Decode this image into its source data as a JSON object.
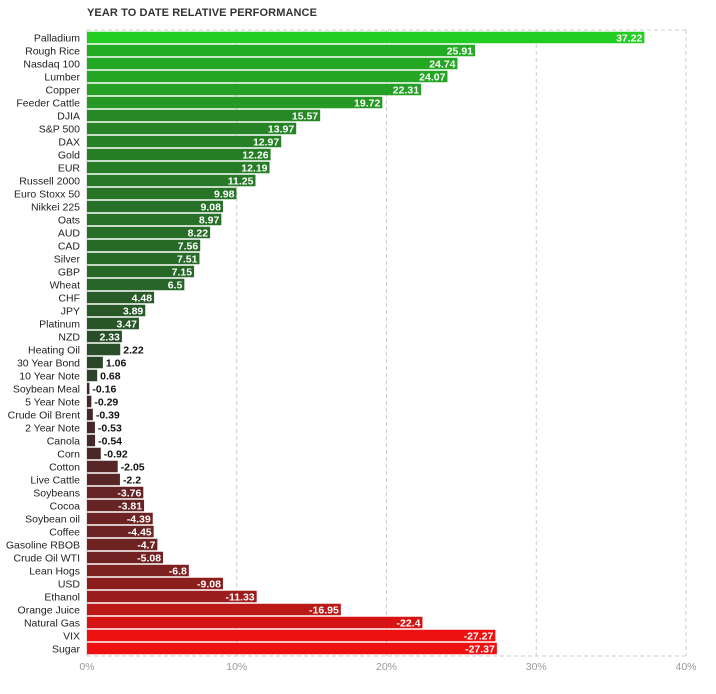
{
  "chart_data": {
    "type": "bar",
    "orientation": "horizontal",
    "title": "YEAR TO DATE RELATIVE PERFORMANCE",
    "xlabel": "",
    "ylabel": "",
    "xlim": [
      0,
      40
    ],
    "x_ticks": [
      "0%",
      "10%",
      "20%",
      "30%",
      "40%"
    ],
    "x_tick_values": [
      0,
      10,
      20,
      30,
      40
    ],
    "grid": true,
    "categories": [
      "Palladium",
      "Rough Rice",
      "Nasdaq 100",
      "Lumber",
      "Copper",
      "Feeder Cattle",
      "DJIA",
      "S&P 500",
      "DAX",
      "Gold",
      "EUR",
      "Russell 2000",
      "Euro Stoxx 50",
      "Nikkei 225",
      "Oats",
      "AUD",
      "CAD",
      "Silver",
      "GBP",
      "Wheat",
      "CHF",
      "JPY",
      "Platinum",
      "NZD",
      "Heating Oil",
      "30 Year Bond",
      "10 Year Note",
      "Soybean Meal",
      "5 Year Note",
      "Crude Oil Brent",
      "2 Year Note",
      "Canola",
      "Corn",
      "Cotton",
      "Live Cattle",
      "Soybeans",
      "Cocoa",
      "Soybean oil",
      "Coffee",
      "Gasoline RBOB",
      "Crude Oil WTI",
      "Lean Hogs",
      "USD",
      "Ethanol",
      "Orange Juice",
      "Natural Gas",
      "VIX",
      "Sugar"
    ],
    "values": [
      37.22,
      25.91,
      24.74,
      24.07,
      22.31,
      19.72,
      15.57,
      13.97,
      12.97,
      12.26,
      12.19,
      11.25,
      9.98,
      9.08,
      8.97,
      8.22,
      7.56,
      7.51,
      7.15,
      6.5,
      4.48,
      3.89,
      3.47,
      2.33,
      2.22,
      1.06,
      0.68,
      -0.16,
      -0.29,
      -0.39,
      -0.53,
      -0.54,
      -0.92,
      -2.05,
      -2.2,
      -3.76,
      -3.81,
      -4.39,
      -4.45,
      -4.7,
      -5.08,
      -6.8,
      -9.08,
      -11.33,
      -16.95,
      -22.4,
      -27.27,
      -27.37
    ],
    "value_labels": [
      "37.22",
      "25.91",
      "24.74",
      "24.07",
      "22.31",
      "19.72",
      "15.57",
      "13.97",
      "12.97",
      "12.26",
      "12.19",
      "11.25",
      "9.98",
      "9.08",
      "8.97",
      "8.22",
      "7.56",
      "7.51",
      "7.15",
      "6.5",
      "4.48",
      "3.89",
      "3.47",
      "2.33",
      "2.22",
      "1.06",
      "0.68",
      "-0.16",
      "-0.29",
      "-0.39",
      "-0.53",
      "-0.54",
      "-0.92",
      "-2.05",
      "-2.2",
      "-3.76",
      "-3.81",
      "-4.39",
      "-4.45",
      "-4.7",
      "-5.08",
      "-6.8",
      "-9.08",
      "-11.33",
      "-16.95",
      "-22.4",
      "-27.27",
      "-27.37"
    ],
    "colors": {
      "positive_max": "#22cc22",
      "positive_min": "#2a3a2a",
      "negative_min": "#3a2a2a",
      "negative_max": "#ee1111",
      "grid": "#cccccc",
      "tick_text": "#999999",
      "label_text": "#222222"
    }
  }
}
